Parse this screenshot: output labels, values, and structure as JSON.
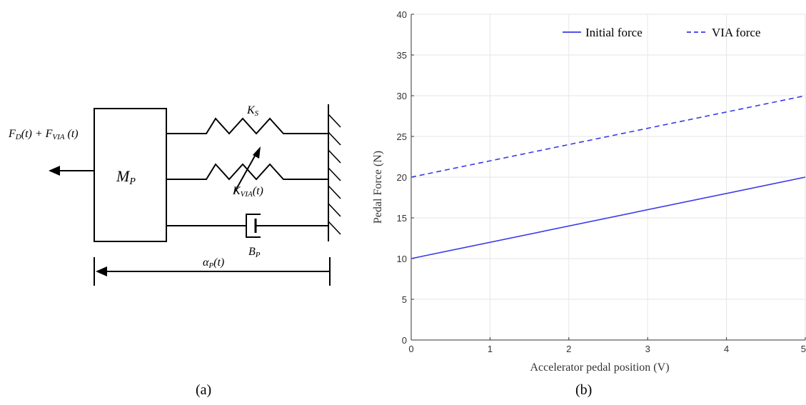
{
  "panel_a": {
    "caption": "(a)",
    "mass_label": "M_P",
    "force_label": "F_D(t) + F_VIA(t)",
    "spring_label": "K_S",
    "variable_spring_label": "K_VIA(t)",
    "damper_label": "B_P",
    "position_label": "α_P(t)"
  },
  "panel_b": {
    "caption": "(b)"
  },
  "chart_data": {
    "type": "line",
    "xlabel": "Accelerator pedal position (V)",
    "ylabel": "Pedal Force (N)",
    "xlim": [
      0,
      5
    ],
    "ylim": [
      0,
      40
    ],
    "xticks": [
      "0",
      "1",
      "2",
      "3",
      "4",
      "5"
    ],
    "yticks": [
      "0",
      "5",
      "10",
      "15",
      "20",
      "25",
      "30",
      "35",
      "40"
    ],
    "grid": true,
    "legend_position": "top-right",
    "colors": {
      "series": "#3a3ae8",
      "grid": "#e6e6e6",
      "axis": "#333333"
    },
    "series": [
      {
        "name": "Initial force",
        "style": "solid",
        "x": [
          0,
          5
        ],
        "y": [
          10,
          20
        ]
      },
      {
        "name": "VIA force",
        "style": "dashed",
        "x": [
          0,
          5
        ],
        "y": [
          20,
          30
        ]
      }
    ]
  }
}
